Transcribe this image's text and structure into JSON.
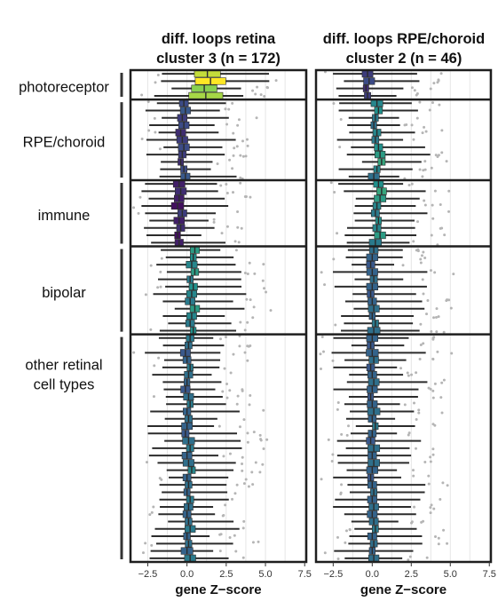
{
  "chart_data": {
    "type": "boxplot",
    "xlabel": "gene Z−score",
    "xlim": [
      -3.6,
      7.6
    ],
    "xticks": [
      -2.5,
      0.0,
      2.5,
      5.0,
      7.5
    ],
    "xtick_labels": [
      "−2.5",
      "0.0",
      "2.5",
      "5.0",
      "7.5"
    ],
    "grid": true,
    "groups": [
      {
        "label": "photoreceptor",
        "lines": [
          "photoreceptor"
        ],
        "rows": 4
      },
      {
        "label": "RPE/choroid",
        "lines": [
          "RPE/choroid"
        ],
        "rows": 11
      },
      {
        "label": "immune",
        "lines": [
          "immune"
        ],
        "rows": 9
      },
      {
        "label": "bipolar",
        "lines": [
          "bipolar"
        ],
        "rows": 12
      },
      {
        "label": "other retinal cell types",
        "lines": [
          "other retinal",
          "cell types"
        ],
        "rows": 31
      }
    ],
    "panels": [
      {
        "title_lines": [
          "diff. loops retina",
          "cluster 3  (n = 172)"
        ],
        "group_medians": [
          [
            1.3,
            1.5,
            1.1,
            1.2
          ],
          [
            -0.2,
            -0.1,
            -0.3,
            -0.2,
            -0.4,
            -0.3,
            -0.2,
            -0.3,
            -0.4,
            -0.2,
            -0.1
          ],
          [
            -0.5,
            -0.4,
            -0.5,
            -0.6,
            -0.3,
            -0.5,
            -0.4,
            -0.6,
            -0.5
          ],
          [
            0.5,
            0.4,
            0.3,
            0.5,
            0.2,
            0.4,
            0.3,
            0.2,
            0.5,
            0.3,
            0.2,
            0.4
          ],
          [
            0.2,
            0.1,
            -0.1,
            0.0,
            0.2,
            0.1,
            0.0,
            -0.1,
            0.1,
            0.2,
            0.0,
            0.1,
            0.0,
            -0.1,
            0.1,
            0.2,
            0.0,
            0.1,
            0.3,
            0.0,
            0.1,
            0.0,
            0.2,
            0.1,
            0.0,
            0.1,
            0.2,
            0.0,
            0.1,
            0.0,
            0.2
          ]
        ]
      },
      {
        "title_lines": [
          "diff. loops RPE/choroid",
          "cluster 2  (n = 46)"
        ],
        "group_medians": [
          [
            -0.3,
            -0.2,
            -0.4,
            -0.3
          ],
          [
            0.3,
            0.4,
            0.2,
            0.1,
            0.3,
            0.2,
            0.4,
            0.5,
            0.6,
            0.3,
            0.1
          ],
          [
            0.4,
            0.6,
            0.5,
            0.3,
            0.2,
            0.4,
            0.3,
            0.5,
            0.2
          ],
          [
            0.1,
            0.0,
            -0.1,
            0.0,
            0.1,
            0.0,
            -0.1,
            0.0,
            0.1,
            0.0,
            0.2,
            0.1
          ],
          [
            0.0,
            -0.1,
            0.0,
            0.1,
            -0.1,
            0.0,
            0.1,
            0.0,
            -0.1,
            0.0,
            0.1,
            0.0,
            0.2,
            0.0,
            -0.1,
            0.1,
            0.0,
            0.1,
            0.0,
            -0.1,
            0.0,
            0.1,
            0.0,
            0.1,
            0.0,
            0.1,
            0.2,
            0.0,
            0.1,
            0.0,
            0.1
          ]
        ]
      }
    ]
  }
}
